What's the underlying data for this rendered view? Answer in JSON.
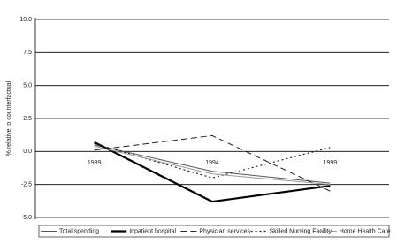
{
  "chart_data": {
    "type": "line",
    "y_label": "% relative to counterfactual",
    "categories": [
      "1989",
      "1994",
      "1999"
    ],
    "series": [
      {
        "name": "Total spending",
        "color": "#555555",
        "width": 1,
        "dash": "none",
        "values": [
          0.5,
          -1.5,
          -2.4
        ]
      },
      {
        "name": "Inpatient hospital",
        "color": "#000000",
        "width": 2.2,
        "dash": "none",
        "values": [
          0.7,
          -3.8,
          -2.6
        ]
      },
      {
        "name": "Physician services",
        "color": "#222222",
        "width": 1,
        "dash": "7 4",
        "values": [
          0.1,
          1.2,
          -3.0
        ]
      },
      {
        "name": "Skilled Nursing Facility",
        "color": "#222222",
        "width": 1.2,
        "dash": "2 3",
        "values": [
          0.6,
          -2.0,
          0.3
        ]
      },
      {
        "name": "Home Health Care",
        "color": "#999999",
        "width": 1,
        "dash": "none",
        "values": [
          0.4,
          -1.7,
          -2.5
        ]
      }
    ],
    "ylim": [
      -5,
      10
    ],
    "yticks": [
      {
        "value": -5,
        "label": "-5.0"
      },
      -2.5,
      {
        "value": 0,
        "label": "0.0"
      },
      2.5,
      {
        "value": 5,
        "label": "5.0"
      },
      7.5,
      {
        "value": 10,
        "label": "10.0"
      }
    ],
    "grid": true
  }
}
